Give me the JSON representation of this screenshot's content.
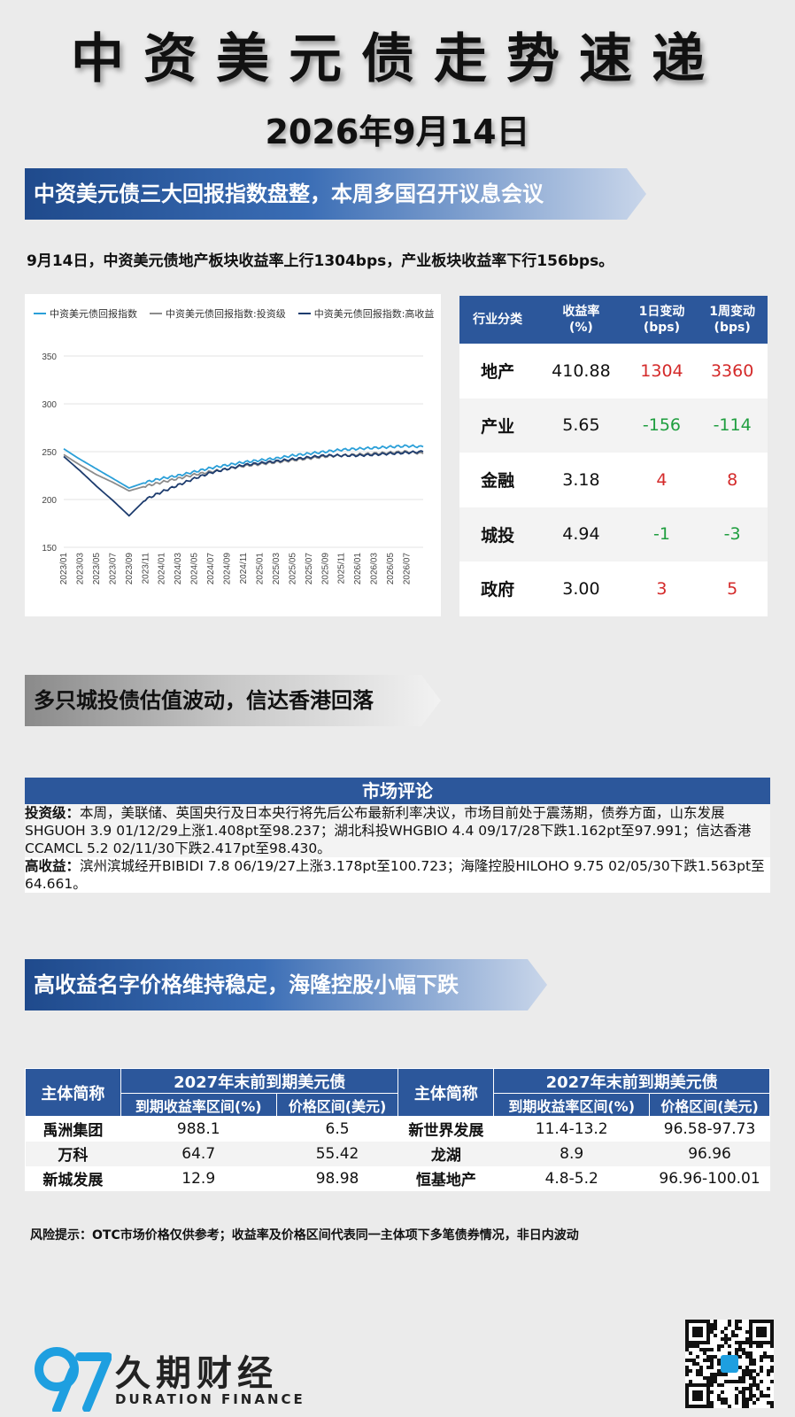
{
  "header": {
    "title": "中资美元债走势速递",
    "date": "2026年9月14日"
  },
  "section1": {
    "banner": "中资美元债三大回报指数盘整，本周多国召开议息会议",
    "summary": "9月14日，中资美元债地产板块收益率上行1304bps，产业板块收益率下行156bps。"
  },
  "chart_data": {
    "type": "line",
    "title": "",
    "xlabel": "",
    "ylabel": "",
    "ylim": [
      150,
      350
    ],
    "yticks": [
      150,
      200,
      250,
      300,
      350
    ],
    "x_tick_labels": [
      "2023/01",
      "2023/03",
      "2023/05",
      "2023/07",
      "2023/09",
      "2023/11",
      "2024/01",
      "2024/03",
      "2024/05",
      "2024/07",
      "2024/09",
      "2024/11",
      "2025/01",
      "2025/03",
      "2025/05",
      "2025/07",
      "2025/09",
      "2025/11",
      "2026/01",
      "2026/03",
      "2026/05",
      "2026/07"
    ],
    "grid": "horizontal",
    "legend": "top",
    "x": [
      "2023/01",
      "2023/03",
      "2023/05",
      "2023/07",
      "2023/09",
      "2023/11",
      "2024/01",
      "2024/03",
      "2024/05",
      "2024/07",
      "2024/09",
      "2024/11",
      "2025/01",
      "2025/03",
      "2025/05",
      "2025/07",
      "2025/09",
      "2025/11",
      "2026/01",
      "2026/03",
      "2026/05",
      "2026/07",
      "2026/09"
    ],
    "series": [
      {
        "name": "中资美元债回报指数",
        "color": "#2a9fd8",
        "values": [
          253,
          242,
          232,
          222,
          212,
          218,
          222,
          225,
          229,
          233,
          236,
          239,
          241,
          243,
          246,
          248,
          250,
          252,
          253,
          254,
          255,
          256,
          255
        ]
      },
      {
        "name": "中资美元债回报指数:投资级",
        "color": "#8c8c8c",
        "values": [
          247,
          236,
          226,
          218,
          209,
          214,
          218,
          222,
          226,
          229,
          232,
          235,
          237,
          239,
          241,
          243,
          245,
          246,
          247,
          248,
          249,
          250,
          248
        ]
      },
      {
        "name": "中资美元债回报指数:高收益",
        "color": "#1d3c6e",
        "values": [
          245,
          230,
          214,
          199,
          183,
          200,
          208,
          215,
          222,
          228,
          232,
          236,
          238,
          240,
          242,
          244,
          246,
          246,
          246,
          247,
          248,
          249,
          250
        ]
      }
    ]
  },
  "industry_table": {
    "headers": [
      "行业分类",
      "收益率\n(%)",
      "1日变动\n(bps)",
      "1周变动\n(bps)"
    ],
    "rows": [
      {
        "name": "地产",
        "yield": "410.88",
        "d1": "1304",
        "w1": "3360",
        "dir": "up"
      },
      {
        "name": "产业",
        "yield": "5.65",
        "d1": "-156",
        "w1": "-114",
        "dir": "down"
      },
      {
        "name": "金融",
        "yield": "3.18",
        "d1": "4",
        "w1": "8",
        "dir": "up"
      },
      {
        "name": "城投",
        "yield": "4.94",
        "d1": "-1",
        "w1": "-3",
        "dir": "down"
      },
      {
        "name": "政府",
        "yield": "3.00",
        "d1": "3",
        "w1": "5",
        "dir": "up"
      }
    ]
  },
  "section2": {
    "banner": "多只城投债估值波动，信达香港回落"
  },
  "commentary": {
    "title": "市场评论",
    "ig_label": "投资级：",
    "ig_text": "本周，美联储、英国央行及日本央行将先后公布最新利率决议，市场目前处于震荡期，债券方面，山东发展SHGUOH 3.9 01/12/29上涨1.408pt至98.237；湖北科投WHGBIO 4.4 09/17/28下跌1.162pt至97.991；信达香港CCAMCL 5.2 02/11/30下跌2.417pt至98.430。",
    "hy_label": "高收益：",
    "hy_text": "滨州滨城经开BIBIDI 7.8 06/19/27上涨3.178pt至100.723；海隆控股HILOHO 9.75 02/05/30下跌1.563pt至64.661。"
  },
  "section3": {
    "banner": "高收益名字价格维持稳定，海隆控股小幅下跌"
  },
  "hy_table": {
    "col_name": "主体简称",
    "group": "2027年末前到期美元债",
    "col_yield": "到期收益率区间(%)",
    "col_price": "价格区间(美元)",
    "left": [
      {
        "name": "禹洲集团",
        "yield": "988.1",
        "price": "6.5"
      },
      {
        "name": "万科",
        "yield": "64.7",
        "price": "55.42"
      },
      {
        "name": "新城发展",
        "yield": "12.9",
        "price": "98.98"
      }
    ],
    "right": [
      {
        "name": "新世界发展",
        "yield": "11.4-13.2",
        "price": "96.58-97.73"
      },
      {
        "name": "龙湖",
        "yield": "8.9",
        "price": "96.96"
      },
      {
        "name": "恒基地产",
        "yield": "4.8-5.2",
        "price": "96.96-100.01"
      }
    ]
  },
  "footer": {
    "risk": "风险提示：OTC市场价格仅供参考；收益率及价格区间代表同一主体项下多笔债券情况，非日内波动",
    "logo_cn": "久期财经",
    "logo_en": "DURATION FINANCE",
    "qr_icon": "qr-code-icon"
  },
  "colors": {
    "accent": "#2c579b",
    "up": "#d42a2a",
    "down": "#1f9e3f"
  }
}
